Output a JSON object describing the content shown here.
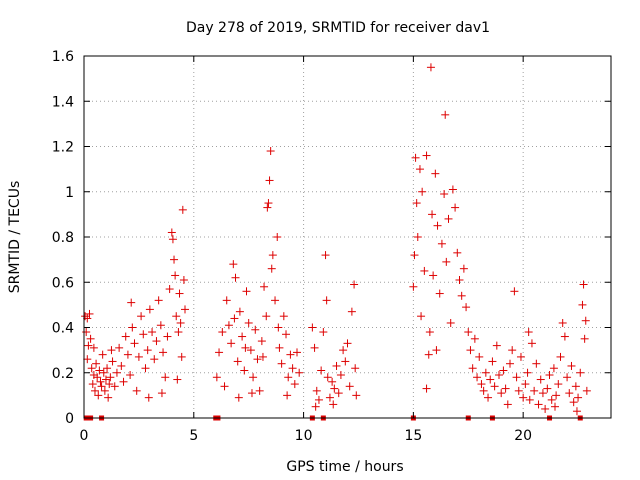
{
  "chart_data": {
    "type": "scatter",
    "title": "Day 278 of 2019, SRMTID for receiver dav1",
    "xlabel": "GPS time / hours",
    "ylabel": "SRMTID / TECUs",
    "xlim": [
      0,
      24
    ],
    "ylim": [
      0,
      1.6
    ],
    "xticks": [
      0,
      5,
      10,
      15,
      20
    ],
    "xtick_labels": [
      "0",
      "5",
      "10",
      "15",
      "20"
    ],
    "yticks": [
      0,
      0.2,
      0.4,
      0.6,
      0.8,
      1.0,
      1.2,
      1.4,
      1.6
    ],
    "ytick_labels": [
      "0",
      "0.2",
      "0.4",
      "0.6",
      "0.8",
      "1",
      "1.2",
      "1.4",
      "1.6"
    ],
    "grid": true,
    "marker": "+",
    "color": "#dd0000",
    "zero_markers_x": [
      0.1,
      0.3,
      0.8,
      6.0,
      6.1,
      10.4,
      10.9,
      15.0,
      17.5,
      18.6,
      21.2,
      22.6
    ],
    "series": [
      {
        "name": "SRMTID",
        "points": [
          [
            0.05,
            0.45
          ],
          [
            0.1,
            0.38
          ],
          [
            0.15,
            0.44
          ],
          [
            0.2,
            0.32
          ],
          [
            0.25,
            0.46
          ],
          [
            0.3,
            0.35
          ],
          [
            0.35,
            0.22
          ],
          [
            0.4,
            0.15
          ],
          [
            0.45,
            0.19
          ],
          [
            0.5,
            0.12
          ],
          [
            0.55,
            0.24
          ],
          [
            0.6,
            0.18
          ],
          [
            0.65,
            0.1
          ],
          [
            0.7,
            0.21
          ],
          [
            0.75,
            0.16
          ],
          [
            0.8,
            0.14
          ],
          [
            0.85,
            0.28
          ],
          [
            0.9,
            0.2
          ],
          [
            0.95,
            0.12
          ],
          [
            1.0,
            0.17
          ],
          [
            1.05,
            0.22
          ],
          [
            1.1,
            0.09
          ],
          [
            1.15,
            0.15
          ],
          [
            1.2,
            0.18
          ],
          [
            1.3,
            0.25
          ],
          [
            1.4,
            0.14
          ],
          [
            1.5,
            0.2
          ],
          [
            1.6,
            0.31
          ],
          [
            1.7,
            0.23
          ],
          [
            1.8,
            0.16
          ],
          [
            1.9,
            0.36
          ],
          [
            2.0,
            0.28
          ],
          [
            2.1,
            0.19
          ],
          [
            2.2,
            0.4
          ],
          [
            2.3,
            0.33
          ],
          [
            2.4,
            0.12
          ],
          [
            2.5,
            0.27
          ],
          [
            2.6,
            0.45
          ],
          [
            2.7,
            0.37
          ],
          [
            2.8,
            0.22
          ],
          [
            2.9,
            0.3
          ],
          [
            3.0,
            0.48
          ],
          [
            3.1,
            0.38
          ],
          [
            3.2,
            0.26
          ],
          [
            3.3,
            0.34
          ],
          [
            3.4,
            0.52
          ],
          [
            3.5,
            0.41
          ],
          [
            3.6,
            0.29
          ],
          [
            3.7,
            0.18
          ],
          [
            3.8,
            0.36
          ],
          [
            3.9,
            0.57
          ],
          [
            4.0,
            0.82
          ],
          [
            4.05,
            0.79
          ],
          [
            4.1,
            0.7
          ],
          [
            4.15,
            0.63
          ],
          [
            4.2,
            0.45
          ],
          [
            4.3,
            0.38
          ],
          [
            4.35,
            0.55
          ],
          [
            4.4,
            0.42
          ],
          [
            4.5,
            0.92
          ],
          [
            4.55,
            0.61
          ],
          [
            4.6,
            0.48
          ],
          [
            4.45,
            0.27
          ],
          [
            4.25,
            0.17
          ],
          [
            3.55,
            0.11
          ],
          [
            2.95,
            0.09
          ],
          [
            1.25,
            0.3
          ],
          [
            0.15,
            0.26
          ],
          [
            0.45,
            0.31
          ],
          [
            2.15,
            0.51
          ],
          [
            6.05,
            0.18
          ],
          [
            6.15,
            0.29
          ],
          [
            6.3,
            0.38
          ],
          [
            6.4,
            0.14
          ],
          [
            6.5,
            0.52
          ],
          [
            6.6,
            0.41
          ],
          [
            6.7,
            0.33
          ],
          [
            6.8,
            0.68
          ],
          [
            6.9,
            0.62
          ],
          [
            7.0,
            0.25
          ],
          [
            7.1,
            0.47
          ],
          [
            7.2,
            0.36
          ],
          [
            7.3,
            0.21
          ],
          [
            7.4,
            0.56
          ],
          [
            7.5,
            0.42
          ],
          [
            7.6,
            0.3
          ],
          [
            7.7,
            0.18
          ],
          [
            7.8,
            0.39
          ],
          [
            7.9,
            0.26
          ],
          [
            8.0,
            0.12
          ],
          [
            8.1,
            0.34
          ],
          [
            8.2,
            0.58
          ],
          [
            8.3,
            0.45
          ],
          [
            8.35,
            0.93
          ],
          [
            8.4,
            0.95
          ],
          [
            8.45,
            1.05
          ],
          [
            8.5,
            1.18
          ],
          [
            8.55,
            0.66
          ],
          [
            8.6,
            0.72
          ],
          [
            8.7,
            0.52
          ],
          [
            8.8,
            0.8
          ],
          [
            8.85,
            0.4
          ],
          [
            8.9,
            0.31
          ],
          [
            9.0,
            0.24
          ],
          [
            9.1,
            0.45
          ],
          [
            9.2,
            0.37
          ],
          [
            9.3,
            0.18
          ],
          [
            9.4,
            0.28
          ],
          [
            9.5,
            0.22
          ],
          [
            9.6,
            0.15
          ],
          [
            9.7,
            0.29
          ],
          [
            9.8,
            0.2
          ],
          [
            7.05,
            0.09
          ],
          [
            7.65,
            0.11
          ],
          [
            6.85,
            0.44
          ],
          [
            8.15,
            0.27
          ],
          [
            9.25,
            0.1
          ],
          [
            7.35,
            0.31
          ],
          [
            10.4,
            0.4
          ],
          [
            10.5,
            0.31
          ],
          [
            10.6,
            0.12
          ],
          [
            10.7,
            0.08
          ],
          [
            10.8,
            0.21
          ],
          [
            10.9,
            0.38
          ],
          [
            11.0,
            0.72
          ],
          [
            11.05,
            0.52
          ],
          [
            11.1,
            0.18
          ],
          [
            11.2,
            0.09
          ],
          [
            11.3,
            0.16
          ],
          [
            11.4,
            0.13
          ],
          [
            11.5,
            0.23
          ],
          [
            11.6,
            0.11
          ],
          [
            11.7,
            0.19
          ],
          [
            11.8,
            0.3
          ],
          [
            11.9,
            0.25
          ],
          [
            12.0,
            0.33
          ],
          [
            12.1,
            0.14
          ],
          [
            12.2,
            0.47
          ],
          [
            12.3,
            0.59
          ],
          [
            12.35,
            0.22
          ],
          [
            12.4,
            0.1
          ],
          [
            11.35,
            0.06
          ],
          [
            10.55,
            0.05
          ],
          [
            15.0,
            0.58
          ],
          [
            15.05,
            0.72
          ],
          [
            15.1,
            1.15
          ],
          [
            15.15,
            0.95
          ],
          [
            15.2,
            0.8
          ],
          [
            15.3,
            1.1
          ],
          [
            15.35,
            0.45
          ],
          [
            15.4,
            1.0
          ],
          [
            15.5,
            0.65
          ],
          [
            15.6,
            1.16
          ],
          [
            15.7,
            0.28
          ],
          [
            15.75,
            0.38
          ],
          [
            15.8,
            1.55
          ],
          [
            15.85,
            0.9
          ],
          [
            15.9,
            0.63
          ],
          [
            16.0,
            1.08
          ],
          [
            16.1,
            0.85
          ],
          [
            16.2,
            0.55
          ],
          [
            16.3,
            0.77
          ],
          [
            16.4,
            0.99
          ],
          [
            16.45,
            1.34
          ],
          [
            16.5,
            0.69
          ],
          [
            16.6,
            0.88
          ],
          [
            16.7,
            0.42
          ],
          [
            16.8,
            1.01
          ],
          [
            16.9,
            0.93
          ],
          [
            17.0,
            0.73
          ],
          [
            17.1,
            0.61
          ],
          [
            17.2,
            0.54
          ],
          [
            17.3,
            0.66
          ],
          [
            17.4,
            0.49
          ],
          [
            17.5,
            0.38
          ],
          [
            17.6,
            0.3
          ],
          [
            17.7,
            0.22
          ],
          [
            17.8,
            0.35
          ],
          [
            17.9,
            0.18
          ],
          [
            18.0,
            0.27
          ],
          [
            18.1,
            0.15
          ],
          [
            18.2,
            0.12
          ],
          [
            18.3,
            0.2
          ],
          [
            18.4,
            0.09
          ],
          [
            18.5,
            0.17
          ],
          [
            18.6,
            0.25
          ],
          [
            18.7,
            0.14
          ],
          [
            18.8,
            0.32
          ],
          [
            18.9,
            0.19
          ],
          [
            19.0,
            0.11
          ],
          [
            19.1,
            0.21
          ],
          [
            19.2,
            0.13
          ],
          [
            19.3,
            0.06
          ],
          [
            19.4,
            0.24
          ],
          [
            19.5,
            0.3
          ],
          [
            19.6,
            0.56
          ],
          [
            19.7,
            0.18
          ],
          [
            19.8,
            0.12
          ],
          [
            19.9,
            0.27
          ],
          [
            20.0,
            0.09
          ],
          [
            20.1,
            0.15
          ],
          [
            20.2,
            0.2
          ],
          [
            20.3,
            0.08
          ],
          [
            20.4,
            0.33
          ],
          [
            20.5,
            0.12
          ],
          [
            20.6,
            0.24
          ],
          [
            20.7,
            0.06
          ],
          [
            20.8,
            0.17
          ],
          [
            20.9,
            0.11
          ],
          [
            21.0,
            0.04
          ],
          [
            21.1,
            0.13
          ],
          [
            21.2,
            0.19
          ],
          [
            21.3,
            0.08
          ],
          [
            21.4,
            0.22
          ],
          [
            21.5,
            0.1
          ],
          [
            21.6,
            0.15
          ],
          [
            21.7,
            0.27
          ],
          [
            21.8,
            0.42
          ],
          [
            21.9,
            0.36
          ],
          [
            22.0,
            0.18
          ],
          [
            22.1,
            0.11
          ],
          [
            22.2,
            0.23
          ],
          [
            22.3,
            0.07
          ],
          [
            22.4,
            0.14
          ],
          [
            22.5,
            0.09
          ],
          [
            22.6,
            0.2
          ],
          [
            22.7,
            0.5
          ],
          [
            22.75,
            0.59
          ],
          [
            22.8,
            0.35
          ],
          [
            22.85,
            0.43
          ],
          [
            22.9,
            0.12
          ],
          [
            15.6,
            0.13
          ],
          [
            16.05,
            0.3
          ],
          [
            20.25,
            0.38
          ],
          [
            21.45,
            0.05
          ],
          [
            22.45,
            0.03
          ]
        ]
      }
    ]
  }
}
